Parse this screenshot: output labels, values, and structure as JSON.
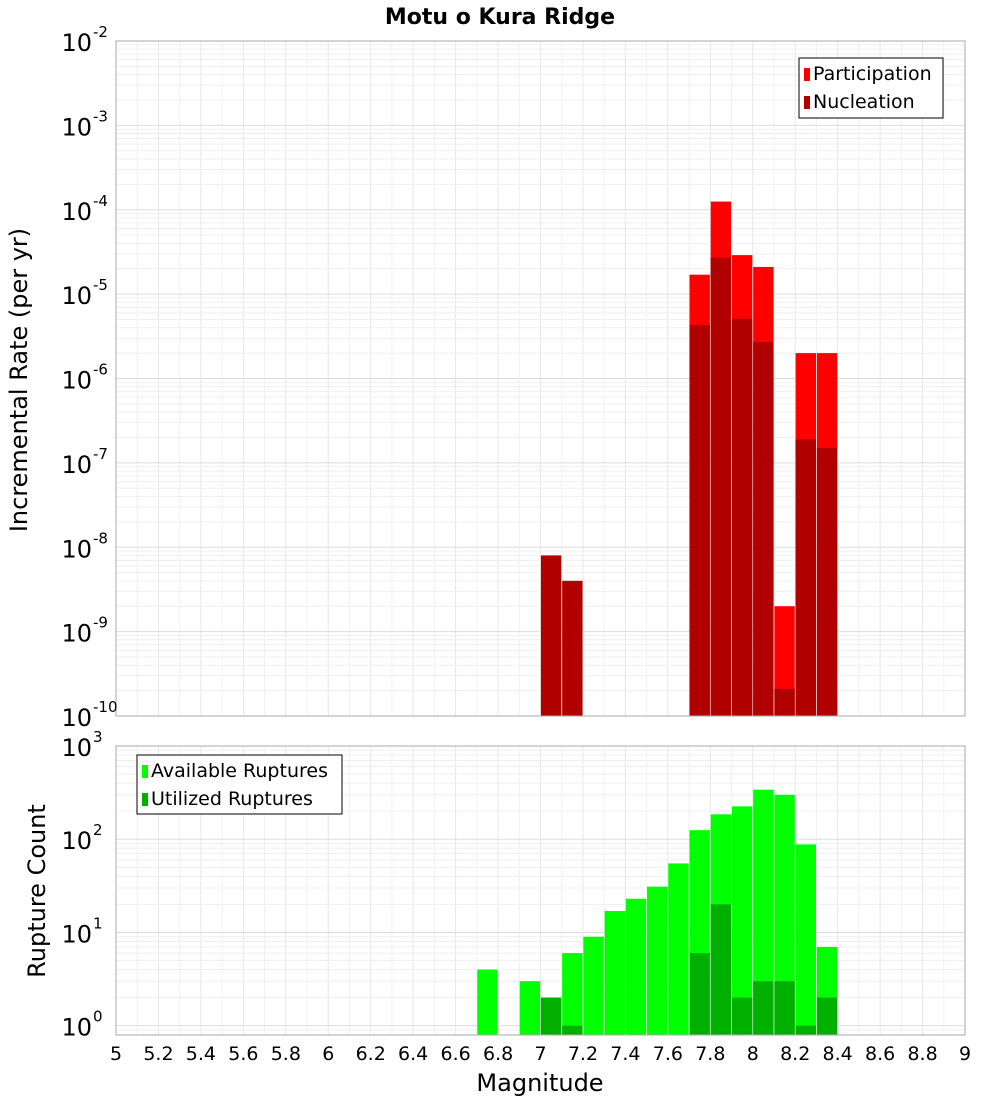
{
  "title": "Motu o Kura Ridge",
  "chart_data": [
    {
      "type": "bar",
      "yscale": "log",
      "ylabel": "Incremental Rate (per yr)",
      "xlabel": "",
      "xlim": [
        5,
        9
      ],
      "ylim_exponents": [
        -10,
        -2
      ],
      "y_ticks": [
        {
          "mant": "10",
          "exp": "-2"
        },
        {
          "mant": "10",
          "exp": "-3"
        },
        {
          "mant": "10",
          "exp": "-4"
        },
        {
          "mant": "10",
          "exp": "-5"
        },
        {
          "mant": "10",
          "exp": "-6"
        },
        {
          "mant": "10",
          "exp": "-7"
        },
        {
          "mant": "10",
          "exp": "-8"
        },
        {
          "mant": "10",
          "exp": "-9"
        },
        {
          "mant": "10",
          "exp": "-10"
        }
      ],
      "legend_position": "top-right",
      "grid": true,
      "series": [
        {
          "name": "Participation",
          "color": "#ff0000",
          "points": [
            {
              "x": 7.75,
              "y": 1.7e-05
            },
            {
              "x": 7.85,
              "y": 0.000125
            },
            {
              "x": 7.95,
              "y": 2.9e-05
            },
            {
              "x": 8.05,
              "y": 2.1e-05
            },
            {
              "x": 8.15,
              "y": 2e-09
            },
            {
              "x": 8.25,
              "y": 2e-06
            },
            {
              "x": 8.35,
              "y": 2e-06
            }
          ]
        },
        {
          "name": "Nucleation",
          "color": "#b00000",
          "points": [
            {
              "x": 7.05,
              "y": 8e-09
            },
            {
              "x": 7.15,
              "y": 4e-09
            },
            {
              "x": 7.75,
              "y": 4.3e-06
            },
            {
              "x": 7.85,
              "y": 2.7e-05
            },
            {
              "x": 7.95,
              "y": 5.1e-06
            },
            {
              "x": 8.05,
              "y": 2.7e-06
            },
            {
              "x": 8.15,
              "y": 2.1e-10
            },
            {
              "x": 8.25,
              "y": 1.9e-07
            },
            {
              "x": 8.35,
              "y": 1.5e-07
            }
          ]
        }
      ]
    },
    {
      "type": "bar",
      "yscale": "log",
      "ylabel": "Rupture Count",
      "xlabel": "Magnitude",
      "xlim": [
        5,
        9
      ],
      "ylim_exponents": [
        -0.1,
        3
      ],
      "y_ticks": [
        {
          "mant": "10",
          "exp": "3"
        },
        {
          "mant": "10",
          "exp": "2"
        },
        {
          "mant": "10",
          "exp": "1"
        },
        {
          "mant": "10",
          "exp": "0"
        }
      ],
      "x_ticks": [
        "5",
        "5.2",
        "5.4",
        "5.6",
        "5.8",
        "6",
        "6.2",
        "6.4",
        "6.6",
        "6.8",
        "7",
        "7.2",
        "7.4",
        "7.6",
        "7.8",
        "8",
        "8.2",
        "8.4",
        "8.6",
        "8.8",
        "9"
      ],
      "legend_position": "top-left",
      "grid": true,
      "series": [
        {
          "name": "Available Ruptures",
          "color": "#00ff00",
          "points": [
            {
              "x": 6.75,
              "y": 4
            },
            {
              "x": 6.95,
              "y": 3
            },
            {
              "x": 7.05,
              "y": 2
            },
            {
              "x": 7.15,
              "y": 6
            },
            {
              "x": 7.25,
              "y": 9
            },
            {
              "x": 7.35,
              "y": 17
            },
            {
              "x": 7.45,
              "y": 23
            },
            {
              "x": 7.55,
              "y": 31
            },
            {
              "x": 7.65,
              "y": 55
            },
            {
              "x": 7.75,
              "y": 125
            },
            {
              "x": 7.85,
              "y": 185
            },
            {
              "x": 7.95,
              "y": 225
            },
            {
              "x": 8.05,
              "y": 340
            },
            {
              "x": 8.15,
              "y": 300
            },
            {
              "x": 8.25,
              "y": 88
            },
            {
              "x": 8.35,
              "y": 7
            }
          ]
        },
        {
          "name": "Utilized Ruptures",
          "color": "#00b000",
          "points": [
            {
              "x": 7.05,
              "y": 2
            },
            {
              "x": 7.15,
              "y": 1
            },
            {
              "x": 7.75,
              "y": 6
            },
            {
              "x": 7.85,
              "y": 20
            },
            {
              "x": 7.95,
              "y": 2
            },
            {
              "x": 8.05,
              "y": 3
            },
            {
              "x": 8.15,
              "y": 3
            },
            {
              "x": 8.25,
              "y": 1
            },
            {
              "x": 8.35,
              "y": 2
            }
          ]
        }
      ]
    }
  ]
}
